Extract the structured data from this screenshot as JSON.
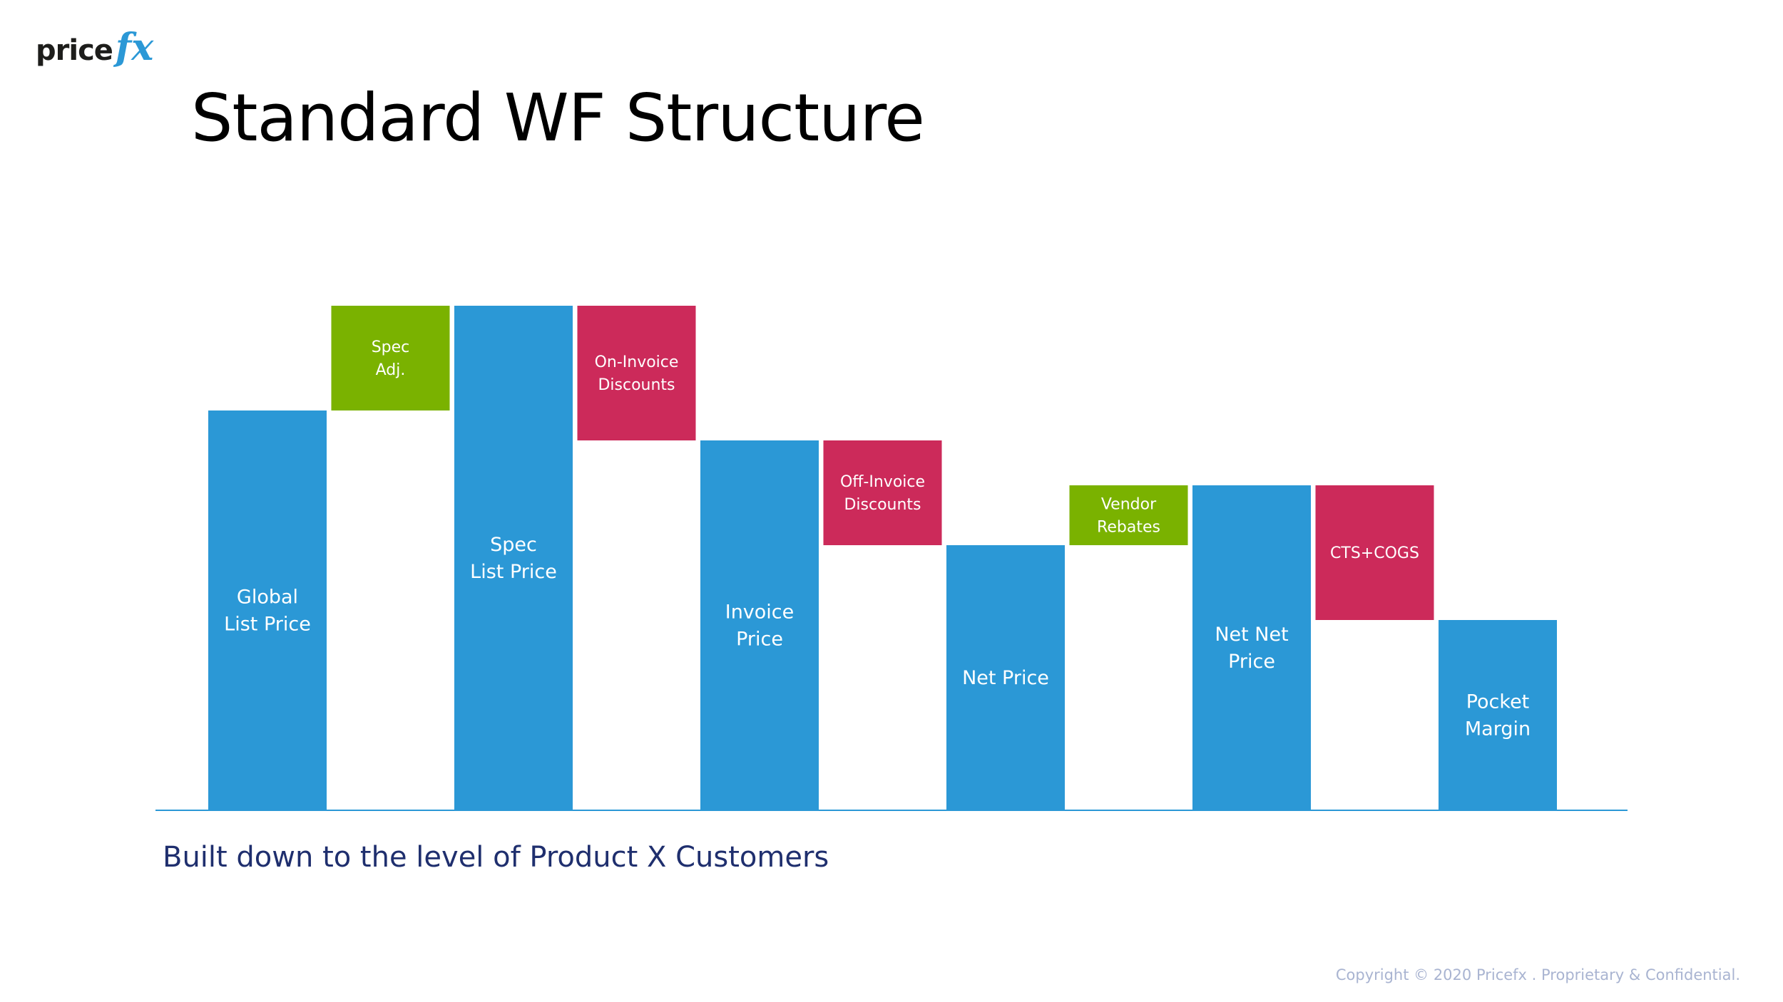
{
  "brand": {
    "logo_word": "price",
    "logo_fx": "fx"
  },
  "page": {
    "title": "Standard WF Structure",
    "subtitle": "Built down to the level of Product X Customers",
    "copyright": "Copyright © 2020 Pricefx . Proprietary & Confidential."
  },
  "colors": {
    "total": "#2b98d6",
    "increase": "#7ab200",
    "decrease": "#cc2a5a",
    "axis": "#2b98d6",
    "bar_text": "#ffffff"
  },
  "chart_data": {
    "type": "waterfall",
    "title": "Standard WF Structure",
    "xlabel": "",
    "ylabel": "",
    "ylim": [
      0,
      100
    ],
    "axis_labels_shown": false,
    "steps": [
      {
        "label": [
          "Global",
          "List Price"
        ],
        "kind": "total",
        "start": 0,
        "end": 80
      },
      {
        "label": [
          "Spec",
          "Adj."
        ],
        "kind": "increase",
        "start": 80,
        "end": 101
      },
      {
        "label": [
          "Spec",
          "List Price"
        ],
        "kind": "total",
        "start": 0,
        "end": 101
      },
      {
        "label": [
          "On-Invoice",
          "Discounts"
        ],
        "kind": "decrease",
        "start": 101,
        "end": 74
      },
      {
        "label": [
          "Invoice",
          "Price"
        ],
        "kind": "total",
        "start": 0,
        "end": 74
      },
      {
        "label": [
          "Off-Invoice",
          "Discounts"
        ],
        "kind": "decrease",
        "start": 74,
        "end": 53
      },
      {
        "label": [
          "Net Price"
        ],
        "kind": "total",
        "start": 0,
        "end": 53
      },
      {
        "label": [
          "Vendor",
          "Rebates"
        ],
        "kind": "increase",
        "start": 53,
        "end": 65
      },
      {
        "label": [
          "Net Net",
          "Price"
        ],
        "kind": "total",
        "start": 0,
        "end": 65
      },
      {
        "label": [
          "CTS+COGS"
        ],
        "kind": "decrease",
        "start": 65,
        "end": 38
      },
      {
        "label": [
          "Pocket",
          "Margin"
        ],
        "kind": "total",
        "start": 0,
        "end": 38
      }
    ]
  }
}
